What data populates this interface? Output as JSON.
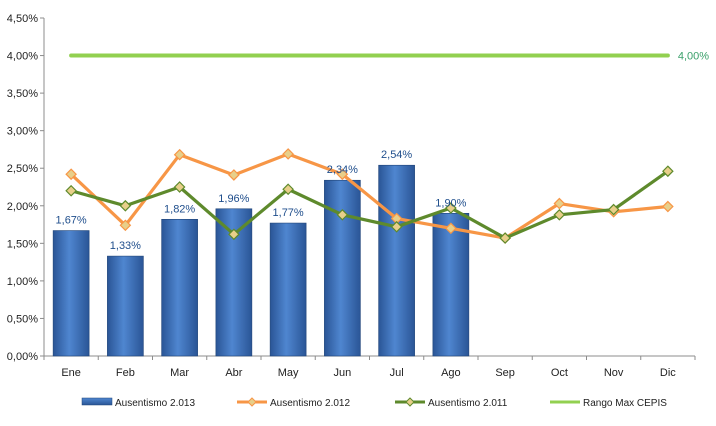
{
  "chart_data": {
    "type": "bar",
    "categories": [
      "Ene",
      "Feb",
      "Mar",
      "Abr",
      "May",
      "Jun",
      "Jul",
      "Ago",
      "Sep",
      "Oct",
      "Nov",
      "Dic"
    ],
    "ylim": [
      0,
      4.5
    ],
    "yticks": [
      "0,00%",
      "0,50%",
      "1,00%",
      "1,50%",
      "2,00%",
      "2,50%",
      "3,00%",
      "3,50%",
      "4,00%",
      "4,50%"
    ],
    "bar_series": {
      "name": "Ausentismo 2.013",
      "color": "#3a6fb8",
      "values": [
        1.67,
        1.33,
        1.82,
        1.96,
        1.77,
        2.34,
        2.54,
        1.9
      ],
      "labels": [
        "1,67%",
        "1,33%",
        "1,82%",
        "1,96%",
        "1,77%",
        "2,34%",
        "2,54%",
        "1,90%"
      ]
    },
    "line_series": [
      {
        "name": "Ausentismo 2.012",
        "color": "#f79646",
        "values": [
          2.42,
          1.74,
          2.68,
          2.41,
          2.69,
          2.42,
          1.83,
          1.7,
          1.57,
          2.03,
          1.92,
          1.99
        ]
      },
      {
        "name": "Ausentismo 2.011",
        "color": "#5e8a2c",
        "values": [
          2.2,
          2.0,
          2.25,
          1.62,
          2.22,
          1.88,
          1.72,
          1.97,
          1.57,
          1.88,
          1.95,
          2.46
        ]
      },
      {
        "name": "Rango Max CEPIS",
        "color": "#92d050",
        "values": [
          4.0,
          4.0,
          4.0,
          4.0,
          4.0,
          4.0,
          4.0,
          4.0,
          4.0,
          4.0,
          4.0,
          4.0
        ],
        "end_label": "4,00%"
      }
    ],
    "legend_position": "bottom",
    "grid": false
  }
}
